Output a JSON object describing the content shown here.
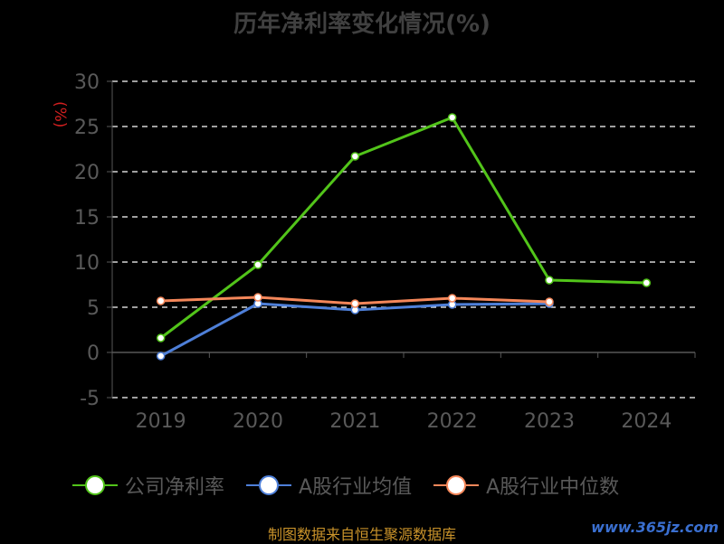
{
  "chart_data": {
    "type": "line",
    "title": "历年净利率变化情况(%)",
    "ylabel": "(%)",
    "xlabel": "",
    "categories": [
      "2019",
      "2020",
      "2021",
      "2022",
      "2023",
      "2024"
    ],
    "ylim": [
      -5,
      30
    ],
    "yticks": [
      30,
      25,
      20,
      15,
      10,
      5,
      0,
      -5
    ],
    "grid": true,
    "legend_position": "bottom",
    "series": [
      {
        "name": "公司净利率",
        "color": "#52c41a",
        "values": [
          1.6,
          9.7,
          21.7,
          26.0,
          8.0,
          7.7
        ]
      },
      {
        "name": "A股行业均值",
        "color": "#4e7fd8",
        "values": [
          -0.4,
          5.4,
          4.7,
          5.3,
          5.4,
          null
        ]
      },
      {
        "name": "A股行业中位数",
        "color": "#f5875a",
        "values": [
          5.7,
          6.1,
          5.4,
          6.0,
          5.6,
          null
        ]
      }
    ]
  },
  "source_text": "制图数据来自恒生聚源数据库",
  "watermark_text": "www.365jz.com"
}
